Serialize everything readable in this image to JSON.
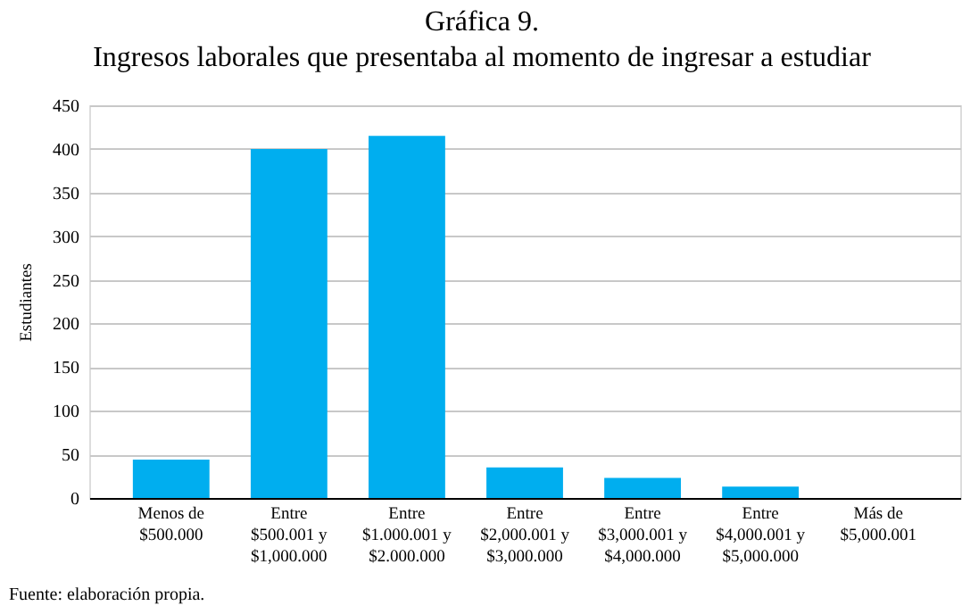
{
  "chart_data": {
    "type": "bar",
    "title": "Gráfica 9.",
    "subtitle": "Ingresos laborales que presentaba al momento de ingresar a estudiar",
    "ylabel": "Estudiantes",
    "categories": [
      "Menos de\n$500.000",
      "Entre\n$500.001 y\n$1,000.000",
      "Entre\n$1.000.001 y\n$2.000.000",
      "Entre\n$2,000.001 y\n$3,000.000",
      "Entre\n$3,000.001 y\n$4,000.000",
      "Entre\n$4,000.001 y\n$5,000.000",
      "Más de\n$5,000.001"
    ],
    "values": [
      44,
      400,
      415,
      35,
      23,
      13,
      0
    ],
    "color": "#00aeef",
    "ylim": [
      0,
      450
    ],
    "yticks": [
      0,
      50,
      100,
      150,
      200,
      250,
      300,
      350,
      400,
      450
    ],
    "grid": "y",
    "annotations": [
      "Fuente: elaboración propia."
    ]
  }
}
